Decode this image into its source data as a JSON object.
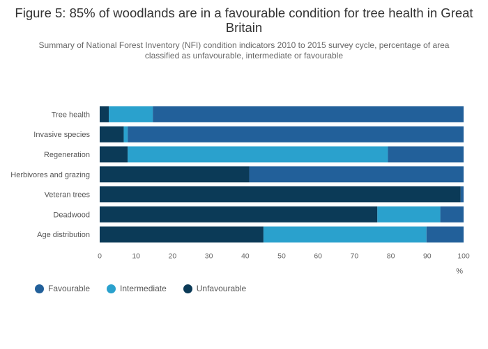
{
  "chart_data": {
    "type": "bar",
    "orientation": "horizontal",
    "stacked": true,
    "title": "Figure 5: 85% of woodlands are in a favourable condition for tree health in Great Britain",
    "subtitle": "Summary of National Forest Inventory (NFI) condition indicators 2010 to 2015 survey cycle, percentage of area classified as unfavourable, intermediate or favourable",
    "categories": [
      "Tree health",
      "Invasive species",
      "Regeneration",
      "Herbivores and grazing",
      "Veteran trees",
      "Deadwood",
      "Age distribution"
    ],
    "series": [
      {
        "name": "Unfavourable",
        "color": "#0b3a57",
        "values": [
          2.5,
          6.6,
          7.7,
          41.1,
          99.2,
          76.3,
          45.0
        ]
      },
      {
        "name": "Intermediate",
        "color": "#2aa1cd",
        "values": [
          12.1,
          1.1,
          71.5,
          0.0,
          0.0,
          17.3,
          44.8
        ]
      },
      {
        "name": "Favourable",
        "color": "#22609a",
        "values": [
          85.4,
          92.3,
          20.8,
          58.9,
          0.8,
          6.4,
          10.2
        ]
      }
    ],
    "xlim": [
      0,
      100
    ],
    "xticks": [
      "0",
      "10",
      "20",
      "30",
      "40",
      "50",
      "60",
      "70",
      "80",
      "90",
      "100"
    ],
    "xlabel": "%",
    "legend_order": [
      "Favourable",
      "Intermediate",
      "Unfavourable"
    ]
  }
}
